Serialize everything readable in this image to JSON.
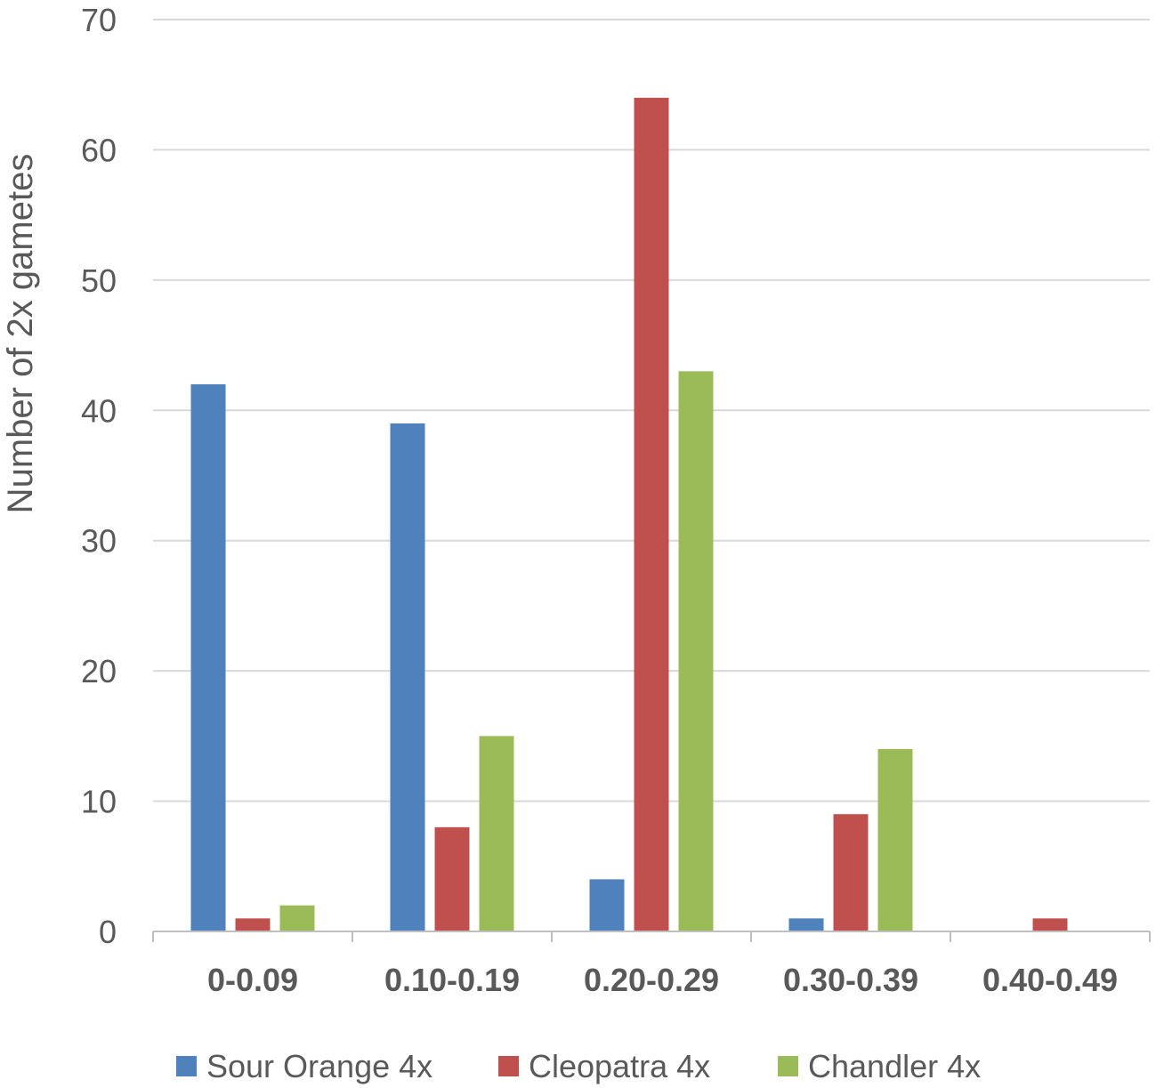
{
  "chart_data": {
    "type": "bar",
    "title": "",
    "xlabel": "",
    "ylabel": "Number of 2x gametes",
    "categories": [
      "0-0.09",
      "0.10-0.19",
      "0.20-0.29",
      "0.30-0.39",
      "0.40-0.49"
    ],
    "series": [
      {
        "name": "Sour Orange 4x",
        "color": "#4F81BD",
        "values": [
          42,
          39,
          4,
          1,
          0
        ]
      },
      {
        "name": "Cleopatra 4x",
        "color": "#C0504D",
        "values": [
          1,
          8,
          64,
          9,
          1
        ]
      },
      {
        "name": "Chandler 4x",
        "color": "#9BBB59",
        "values": [
          2,
          15,
          43,
          14,
          0
        ]
      }
    ],
    "ylim": [
      0,
      70
    ],
    "yticks": [
      0,
      10,
      20,
      30,
      40,
      50,
      60,
      70
    ],
    "grid": true,
    "legend_position": "bottom"
  }
}
